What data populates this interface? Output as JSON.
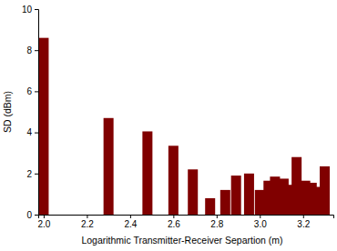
{
  "chart_data": {
    "type": "bar",
    "xlabel": "Logarithmic Transmitter-Receiver Separtion (m)",
    "ylabel": "SD (dBm)",
    "x": [
      2.0,
      2.3,
      2.48,
      2.6,
      2.69,
      2.77,
      2.84,
      2.89,
      2.95,
      3.0,
      3.04,
      3.07,
      3.11,
      3.14,
      3.17,
      3.21,
      3.24,
      3.26,
      3.3
    ],
    "values": [
      8.6,
      4.7,
      4.05,
      3.35,
      2.2,
      0.8,
      1.2,
      1.9,
      2.0,
      1.2,
      1.65,
      1.85,
      1.75,
      1.45,
      2.8,
      1.65,
      1.55,
      1.35,
      2.35
    ],
    "color": "#800000",
    "xlim": [
      1.975,
      3.34
    ],
    "xticks": [
      {
        "value": 2.0,
        "label": "2.0"
      },
      {
        "value": 2.2,
        "label": "2.2"
      },
      {
        "value": 2.4,
        "label": "2.4"
      },
      {
        "value": 2.6,
        "label": "2.6"
      },
      {
        "value": 2.8,
        "label": "2.8"
      },
      {
        "value": 3.0,
        "label": "3.0"
      },
      {
        "value": 3.2,
        "label": "3.2"
      }
    ],
    "ylim": [
      0,
      10
    ],
    "yticks": [
      0,
      2,
      4,
      6,
      8,
      10
    ]
  }
}
